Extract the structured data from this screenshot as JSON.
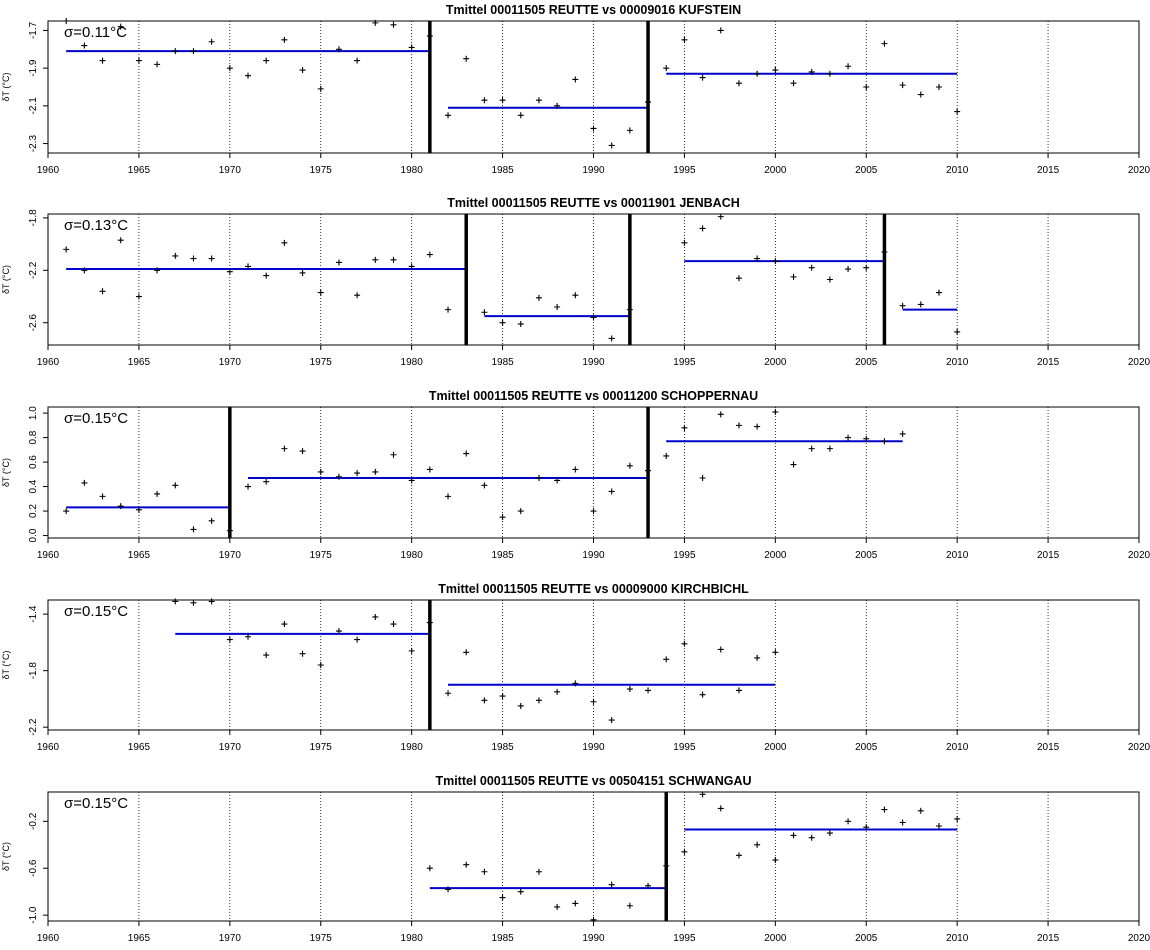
{
  "chart_data": [
    {
      "type": "scatter",
      "title": "Tmittel 00011505 REUTTE vs 00009016 KUFSTEIN",
      "annotation": "σ=0.11°C",
      "ylabel": "δT (°C)",
      "xlim": [
        1960,
        2020
      ],
      "ylim": [
        -2.35,
        -1.65
      ],
      "x_ticks": [
        1960,
        1965,
        1970,
        1975,
        1980,
        1985,
        1990,
        1995,
        2000,
        2005,
        2010,
        2015,
        2020
      ],
      "y_ticks": [
        "-2.3",
        "-2.1",
        "-1.9",
        "-1.7"
      ],
      "y_tick_values": [
        -2.3,
        -2.1,
        -1.9,
        -1.7
      ],
      "gridlines": "vertical dotted at each 5 years",
      "breaks": [
        1981,
        1993
      ],
      "segments": [
        {
          "x0": 1961,
          "x1": 1981,
          "y": -1.81
        },
        {
          "x0": 1982,
          "x1": 1993,
          "y": -2.11
        },
        {
          "x0": 1994,
          "x1": 2010,
          "y": -1.93
        }
      ],
      "points": [
        [
          1961,
          -1.65
        ],
        [
          1962,
          -1.78
        ],
        [
          1963,
          -1.86
        ],
        [
          1964,
          -1.68
        ],
        [
          1965,
          -1.86
        ],
        [
          1966,
          -1.88
        ],
        [
          1967,
          -1.81
        ],
        [
          1968,
          -1.81
        ],
        [
          1969,
          -1.76
        ],
        [
          1970,
          -1.9
        ],
        [
          1971,
          -1.94
        ],
        [
          1972,
          -1.86
        ],
        [
          1973,
          -1.75
        ],
        [
          1974,
          -1.91
        ],
        [
          1975,
          -2.01
        ],
        [
          1976,
          -1.8
        ],
        [
          1977,
          -1.86
        ],
        [
          1978,
          -1.66
        ],
        [
          1979,
          -1.67
        ],
        [
          1980,
          -1.79
        ],
        [
          1981,
          -1.73
        ],
        [
          1982,
          -2.15
        ],
        [
          1983,
          -1.85
        ],
        [
          1984,
          -2.07
        ],
        [
          1985,
          -2.07
        ],
        [
          1986,
          -2.15
        ],
        [
          1987,
          -2.07
        ],
        [
          1988,
          -2.1
        ],
        [
          1989,
          -1.96
        ],
        [
          1990,
          -2.22
        ],
        [
          1991,
          -2.31
        ],
        [
          1992,
          -2.23
        ],
        [
          1993,
          -2.08
        ],
        [
          1994,
          -1.9
        ],
        [
          1995,
          -1.75
        ],
        [
          1996,
          -1.95
        ],
        [
          1997,
          -1.7
        ],
        [
          1998,
          -1.98
        ],
        [
          1999,
          -1.93
        ],
        [
          2000,
          -1.91
        ],
        [
          2001,
          -1.98
        ],
        [
          2002,
          -1.92
        ],
        [
          2003,
          -1.93
        ],
        [
          2004,
          -1.89
        ],
        [
          2005,
          -2.0
        ],
        [
          2006,
          -1.77
        ],
        [
          2007,
          -1.99
        ],
        [
          2008,
          -2.04
        ],
        [
          2009,
          -2.0
        ],
        [
          2010,
          -2.13
        ]
      ]
    },
    {
      "type": "scatter",
      "title": "Tmittel 00011505 REUTTE vs 00011901 JENBACH",
      "annotation": "σ=0.13°C",
      "ylabel": "δT (°C)",
      "xlim": [
        1960,
        2020
      ],
      "ylim": [
        -2.77,
        -1.77
      ],
      "x_ticks": [
        1960,
        1965,
        1970,
        1975,
        1980,
        1985,
        1990,
        1995,
        2000,
        2005,
        2010,
        2015,
        2020
      ],
      "y_ticks": [
        "-2.6",
        "-2.2",
        "-1.8"
      ],
      "y_tick_values": [
        -2.6,
        -2.2,
        -1.8
      ],
      "gridlines": "vertical dotted at each 5 years",
      "breaks": [
        1983,
        1992,
        2006
      ],
      "segments": [
        {
          "x0": 1961,
          "x1": 1983,
          "y": -2.19
        },
        {
          "x0": 1984,
          "x1": 1992,
          "y": -2.55
        },
        {
          "x0": 1995,
          "x1": 2006,
          "y": -2.13
        },
        {
          "x0": 2007,
          "x1": 2010,
          "y": -2.5
        }
      ],
      "points": [
        [
          1961,
          -2.04
        ],
        [
          1962,
          -2.2
        ],
        [
          1963,
          -2.36
        ],
        [
          1964,
          -1.97
        ],
        [
          1965,
          -2.4
        ],
        [
          1966,
          -2.2
        ],
        [
          1967,
          -2.09
        ],
        [
          1968,
          -2.11
        ],
        [
          1969,
          -2.11
        ],
        [
          1970,
          -2.21
        ],
        [
          1971,
          -2.17
        ],
        [
          1972,
          -2.24
        ],
        [
          1973,
          -1.99
        ],
        [
          1974,
          -2.22
        ],
        [
          1975,
          -2.37
        ],
        [
          1976,
          -2.14
        ],
        [
          1977,
          -2.39
        ],
        [
          1978,
          -2.12
        ],
        [
          1979,
          -2.12
        ],
        [
          1980,
          -2.17
        ],
        [
          1981,
          -2.08
        ],
        [
          1982,
          -2.5
        ],
        [
          1984,
          -2.52
        ],
        [
          1985,
          -2.6
        ],
        [
          1986,
          -2.61
        ],
        [
          1987,
          -2.41
        ],
        [
          1988,
          -2.48
        ],
        [
          1989,
          -2.39
        ],
        [
          1990,
          -2.56
        ],
        [
          1991,
          -2.72
        ],
        [
          1992,
          -2.5
        ],
        [
          1995,
          -1.99
        ],
        [
          1996,
          -1.88
        ],
        [
          1997,
          -1.79
        ],
        [
          1998,
          -2.26
        ],
        [
          1999,
          -2.11
        ],
        [
          2000,
          -2.13
        ],
        [
          2001,
          -2.25
        ],
        [
          2002,
          -2.18
        ],
        [
          2003,
          -2.27
        ],
        [
          2004,
          -2.19
        ],
        [
          2005,
          -2.18
        ],
        [
          2006,
          -2.06
        ],
        [
          2007,
          -2.47
        ],
        [
          2008,
          -2.46
        ],
        [
          2009,
          -2.37
        ],
        [
          2010,
          -2.67
        ]
      ]
    },
    {
      "type": "scatter",
      "title": "Tmittel 00011505 REUTTE vs 00011200 SCHOPPERNAU",
      "annotation": "σ=0.15°C",
      "ylabel": "δT (°C)",
      "xlim": [
        1960,
        2020
      ],
      "ylim": [
        -0.02,
        1.05
      ],
      "x_ticks": [
        1960,
        1965,
        1970,
        1975,
        1980,
        1985,
        1990,
        1995,
        2000,
        2005,
        2010,
        2015,
        2020
      ],
      "y_ticks": [
        "0.0",
        "0.2",
        "0.4",
        "0.6",
        "0.8",
        "1.0"
      ],
      "y_tick_values": [
        0.0,
        0.2,
        0.4,
        0.6,
        0.8,
        1.0
      ],
      "gridlines": "vertical dotted at each 5 years",
      "breaks": [
        1970,
        1993
      ],
      "segments": [
        {
          "x0": 1961,
          "x1": 1970,
          "y": 0.23
        },
        {
          "x0": 1971,
          "x1": 1993,
          "y": 0.47
        },
        {
          "x0": 1994,
          "x1": 2007,
          "y": 0.77
        }
      ],
      "points": [
        [
          1961,
          0.2
        ],
        [
          1962,
          0.43
        ],
        [
          1963,
          0.32
        ],
        [
          1964,
          0.24
        ],
        [
          1965,
          0.21
        ],
        [
          1966,
          0.34
        ],
        [
          1967,
          0.41
        ],
        [
          1968,
          0.05
        ],
        [
          1969,
          0.12
        ],
        [
          1970,
          0.04
        ],
        [
          1971,
          0.4
        ],
        [
          1972,
          0.44
        ],
        [
          1973,
          0.71
        ],
        [
          1974,
          0.69
        ],
        [
          1975,
          0.52
        ],
        [
          1976,
          0.48
        ],
        [
          1977,
          0.51
        ],
        [
          1978,
          0.52
        ],
        [
          1979,
          0.66
        ],
        [
          1980,
          0.45
        ],
        [
          1981,
          0.54
        ],
        [
          1982,
          0.32
        ],
        [
          1983,
          0.67
        ],
        [
          1984,
          0.41
        ],
        [
          1985,
          0.15
        ],
        [
          1986,
          0.2
        ],
        [
          1987,
          0.47
        ],
        [
          1988,
          0.45
        ],
        [
          1989,
          0.54
        ],
        [
          1990,
          0.2
        ],
        [
          1991,
          0.36
        ],
        [
          1992,
          0.57
        ],
        [
          1993,
          0.53
        ],
        [
          1994,
          0.65
        ],
        [
          1995,
          0.88
        ],
        [
          1996,
          0.47
        ],
        [
          1997,
          0.99
        ],
        [
          1998,
          0.9
        ],
        [
          1999,
          0.89
        ],
        [
          2000,
          1.01
        ],
        [
          2001,
          0.58
        ],
        [
          2002,
          0.71
        ],
        [
          2003,
          0.71
        ],
        [
          2004,
          0.8
        ],
        [
          2005,
          0.79
        ],
        [
          2006,
          0.77
        ],
        [
          2007,
          0.83
        ]
      ]
    },
    {
      "type": "scatter",
      "title": "Tmittel 00011505 REUTTE vs 00009000 KIRCHBICHL",
      "annotation": "σ=0.15°C",
      "ylabel": "δT (°C)",
      "xlim": [
        1960,
        2020
      ],
      "ylim": [
        -2.22,
        -1.3
      ],
      "x_ticks": [
        1960,
        1965,
        1970,
        1975,
        1980,
        1985,
        1990,
        1995,
        2000,
        2005,
        2010,
        2015,
        2020
      ],
      "y_ticks": [
        "-2.2",
        "-1.8",
        "-1.4"
      ],
      "y_tick_values": [
        -2.2,
        -1.8,
        -1.4
      ],
      "gridlines": "vertical dotted at each 5 years",
      "breaks": [
        1981
      ],
      "segments": [
        {
          "x0": 1967,
          "x1": 1981,
          "y": -1.54
        },
        {
          "x0": 1982,
          "x1": 2000,
          "y": -1.9
        }
      ],
      "points": [
        [
          1967,
          -1.31
        ],
        [
          1968,
          -1.32
        ],
        [
          1969,
          -1.31
        ],
        [
          1970,
          -1.58
        ],
        [
          1971,
          -1.56
        ],
        [
          1972,
          -1.69
        ],
        [
          1973,
          -1.47
        ],
        [
          1974,
          -1.68
        ],
        [
          1975,
          -1.76
        ],
        [
          1976,
          -1.52
        ],
        [
          1977,
          -1.58
        ],
        [
          1978,
          -1.42
        ],
        [
          1979,
          -1.47
        ],
        [
          1980,
          -1.66
        ],
        [
          1981,
          -1.46
        ],
        [
          1982,
          -1.96
        ],
        [
          1983,
          -1.67
        ],
        [
          1984,
          -2.01
        ],
        [
          1985,
          -1.98
        ],
        [
          1986,
          -2.05
        ],
        [
          1987,
          -2.01
        ],
        [
          1988,
          -1.95
        ],
        [
          1989,
          -1.89
        ],
        [
          1990,
          -2.02
        ],
        [
          1991,
          -2.15
        ],
        [
          1992,
          -1.93
        ],
        [
          1993,
          -1.94
        ],
        [
          1994,
          -1.72
        ],
        [
          1995,
          -1.61
        ],
        [
          1996,
          -1.97
        ],
        [
          1997,
          -1.65
        ],
        [
          1998,
          -1.94
        ],
        [
          1999,
          -1.71
        ],
        [
          2000,
          -1.67
        ]
      ]
    },
    {
      "type": "scatter",
      "title": "Tmittel 00011505 REUTTE vs 00504151 SCHWANGAU",
      "annotation": "σ=0.15°C",
      "ylabel": "δT (°C)",
      "xlim": [
        1960,
        2020
      ],
      "ylim": [
        -1.05,
        0.05
      ],
      "x_ticks": [
        1960,
        1965,
        1970,
        1975,
        1980,
        1985,
        1990,
        1995,
        2000,
        2005,
        2010,
        2015,
        2020
      ],
      "y_ticks": [
        "-1.0",
        "-0.6",
        "-0.2"
      ],
      "y_tick_values": [
        -1.0,
        -0.6,
        -0.2
      ],
      "gridlines": "vertical dotted at each 5 years",
      "breaks": [
        1994
      ],
      "segments": [
        {
          "x0": 1981,
          "x1": 1994,
          "y": -0.77
        },
        {
          "x0": 1995,
          "x1": 2010,
          "y": -0.27
        }
      ],
      "points": [
        [
          1981,
          -0.6
        ],
        [
          1982,
          -0.78
        ],
        [
          1983,
          -0.57
        ],
        [
          1984,
          -0.63
        ],
        [
          1985,
          -0.85
        ],
        [
          1986,
          -0.8
        ],
        [
          1987,
          -0.63
        ],
        [
          1988,
          -0.93
        ],
        [
          1989,
          -0.9
        ],
        [
          1990,
          -1.04
        ],
        [
          1991,
          -0.74
        ],
        [
          1992,
          -0.92
        ],
        [
          1993,
          -0.75
        ],
        [
          1994,
          -0.58
        ],
        [
          1995,
          -0.46
        ],
        [
          1996,
          0.03
        ],
        [
          1997,
          -0.09
        ],
        [
          1998,
          -0.49
        ],
        [
          1999,
          -0.4
        ],
        [
          2000,
          -0.53
        ],
        [
          2001,
          -0.32
        ],
        [
          2002,
          -0.34
        ],
        [
          2003,
          -0.3
        ],
        [
          2004,
          -0.2
        ],
        [
          2005,
          -0.25
        ],
        [
          2006,
          -0.1
        ],
        [
          2007,
          -0.21
        ],
        [
          2008,
          -0.11
        ],
        [
          2009,
          -0.24
        ],
        [
          2010,
          -0.18
        ]
      ]
    }
  ],
  "colors": {
    "segment": "#0000cc",
    "break": "#000000",
    "point": "#000000",
    "grid": "#000000"
  }
}
